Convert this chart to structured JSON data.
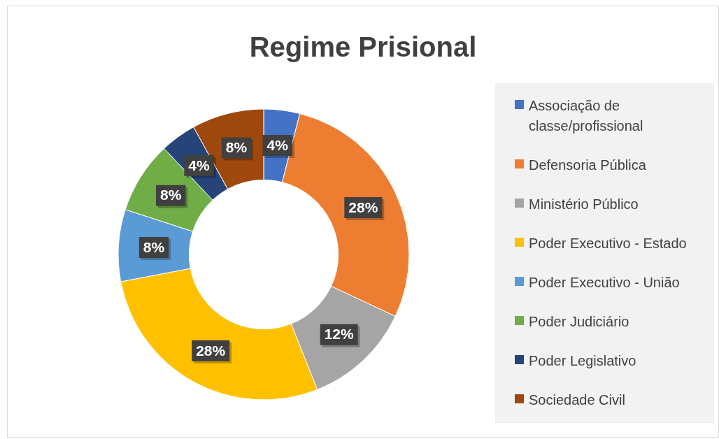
{
  "chart_data": {
    "type": "donut",
    "title": "Regime Prisional",
    "categories": [
      "Associação de classe/profissional",
      "Defensoria Pública",
      "Ministério Público",
      "Poder Executivo - Estado",
      "Poder Executivo - União",
      "Poder Judiciário",
      "Poder Legislativo",
      "Sociedade Civil"
    ],
    "values": [
      4,
      28,
      12,
      28,
      8,
      8,
      4,
      8
    ],
    "colors": [
      "#4472c4",
      "#ed7d31",
      "#a5a5a5",
      "#ffc000",
      "#5b9bd5",
      "#70ad47",
      "#264478",
      "#9e480e"
    ],
    "value_labels": [
      "4%",
      "28%",
      "12%",
      "28%",
      "8%",
      "8%",
      "4%",
      "8%"
    ],
    "legend": "right"
  }
}
